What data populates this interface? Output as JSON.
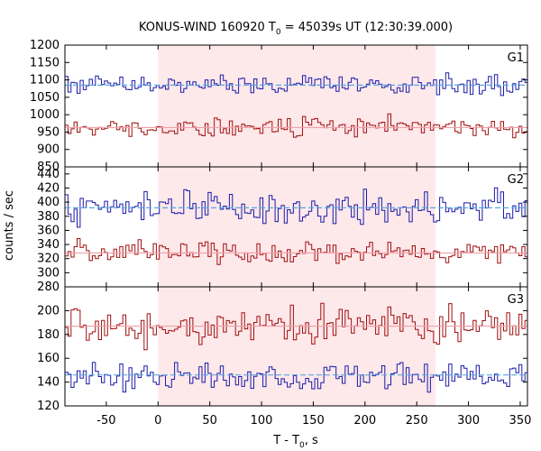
{
  "chart_data": {
    "type": "line",
    "title": "KONUS-WIND 160920 T",
    "title_sub": "0",
    "title_rest": " = 45039s UT (12:30:39.000)",
    "xlabel_main": "T - T",
    "xlabel_sub": "0",
    "xlabel_rest": ", s",
    "ylabel": "counts / sec",
    "xlim": [
      -90,
      357
    ],
    "x_ticks": [
      -50,
      0,
      50,
      100,
      150,
      200,
      250,
      300,
      350
    ],
    "highlight_interval": [
      0,
      268
    ],
    "colors": {
      "blue": "#1c1ca8",
      "red": "#a01010",
      "blue_fit": "#5aa8e0",
      "red_fit": "#f0a0a8",
      "highlight": "#fde8ea"
    },
    "panels": [
      {
        "label": "G1",
        "ylim": [
          850,
          1200
        ],
        "y_ticks": [
          850,
          900,
          950,
          1000,
          1050,
          1100,
          1150,
          1200
        ],
        "series": [
          {
            "color_key": "blue",
            "mean": 1085,
            "amplitude": 14,
            "fit": 1085,
            "seed": 11
          },
          {
            "color_key": "red",
            "mean": 965,
            "amplitude": 14,
            "fit": 963,
            "seed": 23
          }
        ]
      },
      {
        "label": "G2",
        "ylim": [
          280,
          450
        ],
        "y_ticks": [
          280,
          300,
          320,
          340,
          360,
          380,
          400,
          420,
          440
        ],
        "series": [
          {
            "color_key": "blue",
            "mean": 392,
            "amplitude": 11,
            "fit": 392,
            "seed": 37
          },
          {
            "color_key": "red",
            "mean": 329,
            "amplitude": 8,
            "fit": 328,
            "seed": 51
          }
        ]
      },
      {
        "label": "G3",
        "ylim": [
          120,
          220
        ],
        "y_ticks": [
          120,
          140,
          160,
          180,
          200
        ],
        "series": [
          {
            "color_key": "red",
            "mean": 187,
            "amplitude": 8,
            "fit": 187,
            "seed": 67
          },
          {
            "color_key": "blue",
            "mean": 146,
            "amplitude": 6,
            "fit": 146,
            "seed": 83
          }
        ]
      }
    ]
  }
}
